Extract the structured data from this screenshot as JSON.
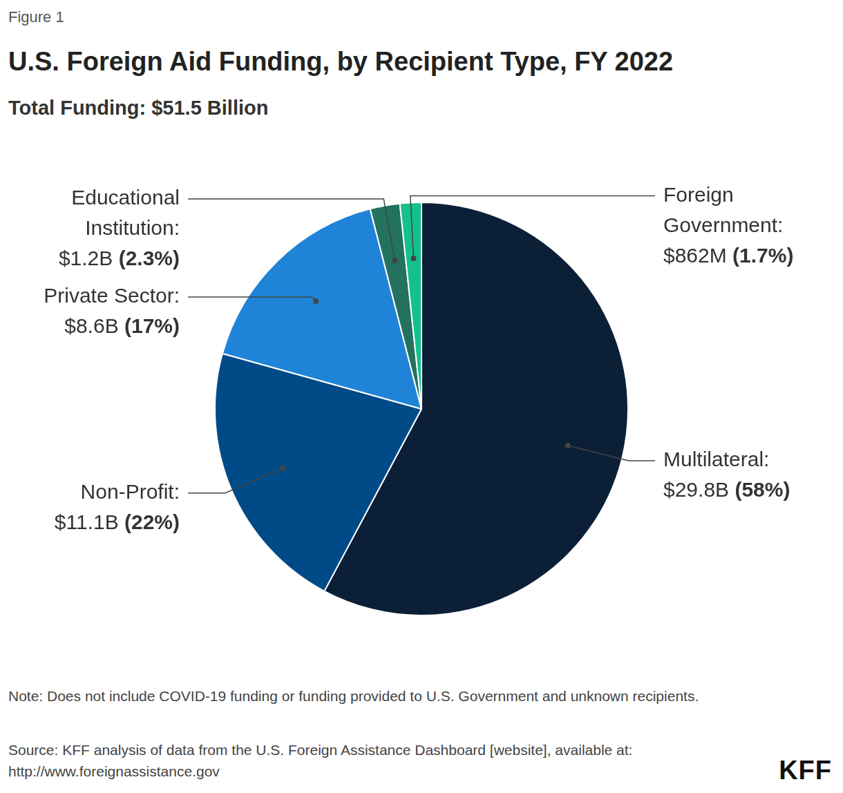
{
  "chart_data": {
    "type": "pie",
    "figure_label": "Figure 1",
    "title": "U.S. Foreign Aid Funding, by Recipient Type, FY 2022",
    "subtitle": "Total Funding: $51.5 Billion",
    "categories": [
      "Multilateral:",
      "Non-Profit:",
      "Private Sector:",
      "Educational Institution:",
      "Foreign Government:"
    ],
    "values": [
      29.8,
      11.1,
      8.6,
      1.2,
      0.862
    ],
    "value_labels": [
      "$29.8B",
      "$11.1B",
      "$8.6B",
      "$1.2B",
      "$862M"
    ],
    "shares": [
      58,
      22,
      17,
      2.3,
      1.7
    ],
    "share_labels": [
      "(58%)",
      "(22%)",
      "(17%)",
      "(2.3%)",
      "(1.7%)"
    ],
    "colors": [
      "#0b1f37",
      "#004a87",
      "#1f84d8",
      "#23715f",
      "#14c08b"
    ],
    "data_labels": true,
    "note": "Note: Does not include COVID-19 funding or funding provided to U.S. Government and unknown recipients.",
    "source": "Source: KFF analysis of data from the U.S. Foreign Assistance Dashboard [website], available at: http://www.foreignassistance.gov",
    "brand": "KFF"
  }
}
